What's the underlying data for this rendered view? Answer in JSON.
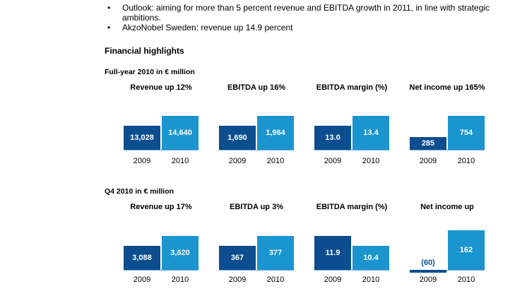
{
  "bullets": [
    "Outlook: aiming for more than 5 percent revenue and EBITDA growth in 2011, in line with strategic ambitions.",
    "AkzoNobel Sweden: revenue up 14.9 percent"
  ],
  "bullet_marker": "•",
  "section_title": "Financial highlights",
  "colors": {
    "y2009": "#0b4d8e",
    "y2010": "#1a95d0"
  },
  "groups": [
    {
      "title": "Full-year 2010 in € million",
      "charts": [
        {
          "title": "Revenue up 12%",
          "years": [
            "2009",
            "2010"
          ],
          "labels": [
            "13,028",
            "14,640"
          ],
          "values": [
            13028,
            14640
          ]
        },
        {
          "title": "EBITDA up 16%",
          "years": [
            "2009",
            "2010"
          ],
          "labels": [
            "1,690",
            "1,964"
          ],
          "values": [
            1690,
            1964
          ]
        },
        {
          "title": "EBITDA margin (%)",
          "years": [
            "2009",
            "2010"
          ],
          "labels": [
            "13.0",
            "13.4"
          ],
          "values": [
            13.0,
            13.4
          ]
        },
        {
          "title": "Net income up 165%",
          "years": [
            "2009",
            "2010"
          ],
          "labels": [
            "285",
            "754"
          ],
          "values": [
            285,
            754
          ]
        }
      ]
    },
    {
      "title": "Q4 2010 in € million",
      "charts": [
        {
          "title": "Revenue up 17%",
          "years": [
            "2009",
            "2010"
          ],
          "labels": [
            "3,088",
            "3,620"
          ],
          "values": [
            3088,
            3620
          ]
        },
        {
          "title": "EBITDA up 3%",
          "years": [
            "2009",
            "2010"
          ],
          "labels": [
            "367",
            "377"
          ],
          "values": [
            367,
            377
          ]
        },
        {
          "title": "EBITDA margin (%)",
          "years": [
            "2009",
            "2010"
          ],
          "labels": [
            "11.9",
            "10.4"
          ],
          "values": [
            11.9,
            10.4
          ]
        },
        {
          "title": "Net income up",
          "years": [
            "2009",
            "2010"
          ],
          "labels": [
            "(60)",
            "162"
          ],
          "values": [
            -60,
            162
          ]
        }
      ]
    }
  ]
}
